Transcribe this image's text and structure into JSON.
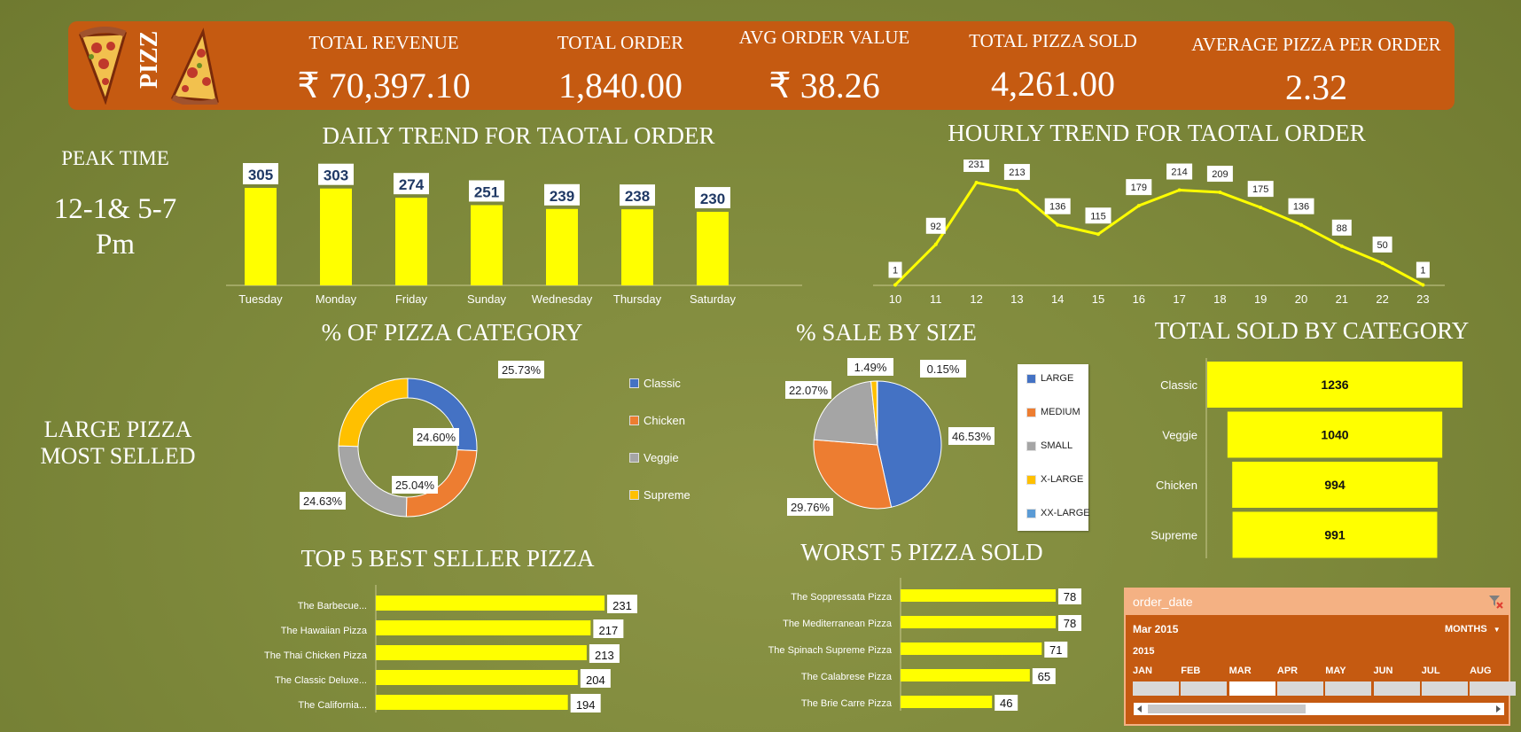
{
  "header": {
    "brand": "PIZZ",
    "kpis": [
      {
        "label": "TOTAL REVENUE",
        "value": "₹ 70,397.10"
      },
      {
        "label": "TOTAL ORDER",
        "value": "1,840.00"
      },
      {
        "label": "AVG ORDER VALUE",
        "value": "₹ 38.26"
      },
      {
        "label": "TOTAL PIZZA SOLD",
        "value": "4,261.00"
      },
      {
        "label": "AVERAGE PIZZA PER ORDER",
        "value": "2.32"
      }
    ]
  },
  "notes": {
    "peak_title": "PEAK TIME",
    "peak_line1": "12-1& 5-7",
    "peak_line2": "Pm",
    "large_line1": "LARGE PIZZA",
    "large_line2": "MOST SELLED"
  },
  "colors": {
    "header": "#c55a11",
    "bar": "#ffff00",
    "classic": "#4472c4",
    "chicken": "#ed7d31",
    "veggie": "#a5a5a5",
    "supreme": "#ffc000"
  },
  "chart_data": [
    {
      "id": "daily",
      "type": "bar",
      "title": "DAILY TREND FOR TAOTAL ORDER",
      "categories": [
        "Tuesday",
        "Monday",
        "Friday",
        "Sunday",
        "Wednesday",
        "Thursday",
        "Saturday"
      ],
      "values": [
        305,
        303,
        274,
        251,
        239,
        238,
        230
      ]
    },
    {
      "id": "hourly",
      "type": "line",
      "title": "HOURLY TREND FOR TAOTAL ORDER",
      "x": [
        "10",
        "11",
        "12",
        "13",
        "14",
        "15",
        "16",
        "17",
        "18",
        "19",
        "20",
        "21",
        "22",
        "23"
      ],
      "values": [
        1,
        92,
        231,
        213,
        136,
        115,
        179,
        214,
        209,
        175,
        136,
        88,
        50,
        1
      ]
    },
    {
      "id": "category",
      "type": "pie",
      "title": "% OF PIZZA CATEGORY",
      "labels": [
        "Classic",
        "Chicken",
        "Veggie",
        "Supreme"
      ],
      "values": [
        25.73,
        24.6,
        25.04,
        24.63
      ],
      "value_labels": [
        "25.73%",
        "24.60%",
        "25.04%",
        "24.63%"
      ],
      "donut": true,
      "legend": "right"
    },
    {
      "id": "size",
      "type": "pie",
      "title": "% SALE BY SIZE",
      "labels": [
        "LARGE",
        "MEDIUM",
        "SMALL",
        "X-LARGE",
        "XX-LARGE"
      ],
      "values": [
        46.53,
        29.76,
        22.07,
        1.49,
        0.15
      ],
      "value_labels": [
        "46.53%",
        "29.76%",
        "22.07%",
        "1.49%",
        "0.15%"
      ],
      "legend": "right"
    },
    {
      "id": "sold_by_category",
      "type": "bar",
      "orientation": "horizontal",
      "title": "TOTAL SOLD BY CATEGORY",
      "categories": [
        "Classic",
        "Veggie",
        "Chicken",
        "Supreme"
      ],
      "values": [
        1236,
        1040,
        994,
        991
      ]
    },
    {
      "id": "top5",
      "type": "bar",
      "orientation": "horizontal",
      "title": "TOP 5 BEST SELLER PIZZA",
      "categories": [
        "The Barbecue...",
        "The Hawaiian Pizza",
        "The Thai Chicken Pizza",
        "The Classic Deluxe...",
        "The California..."
      ],
      "values": [
        231,
        217,
        213,
        204,
        194
      ]
    },
    {
      "id": "worst5",
      "type": "bar",
      "orientation": "horizontal",
      "title": "WORST 5 PIZZA SOLD",
      "categories": [
        "The Soppressata Pizza",
        "The Mediterranean Pizza",
        "The Spinach Supreme Pizza",
        "The Calabrese Pizza",
        "The Brie Carre Pizza"
      ],
      "values": [
        78,
        78,
        71,
        65,
        46
      ]
    }
  ],
  "slicer": {
    "title": "order_date",
    "selection": "Mar 2015",
    "level": "MONTHS",
    "year": "2015",
    "months": [
      "JAN",
      "FEB",
      "MAR",
      "APR",
      "MAY",
      "JUN",
      "JUL",
      "AUG"
    ],
    "selected_month": "MAR"
  }
}
